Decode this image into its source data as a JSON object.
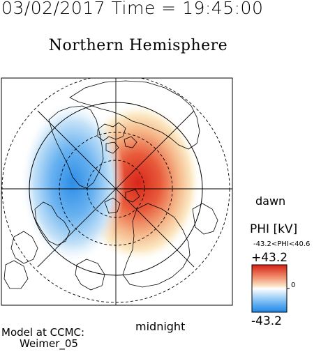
{
  "header": {
    "date": "03/02/2017",
    "time_label": "Time = 19:45:00"
  },
  "title": "Northern Hemisphere",
  "orientation": {
    "right": "dawn",
    "bottom": "midnight"
  },
  "colorbar": {
    "label": "PHI [kV]",
    "range_text": "-43.2<PHI<40.6",
    "max_label": "+43.2",
    "min_label": "-43.2",
    "zero_label": "0",
    "colors": {
      "positive": "#e03020",
      "negative": "#2f8fe8",
      "neutral": "#ffffff"
    }
  },
  "potential": {
    "min_kv": -43.2,
    "max_kv": 40.6
  },
  "model": {
    "line1": "Model at CCMC:",
    "line2": "Weimer_05"
  }
}
